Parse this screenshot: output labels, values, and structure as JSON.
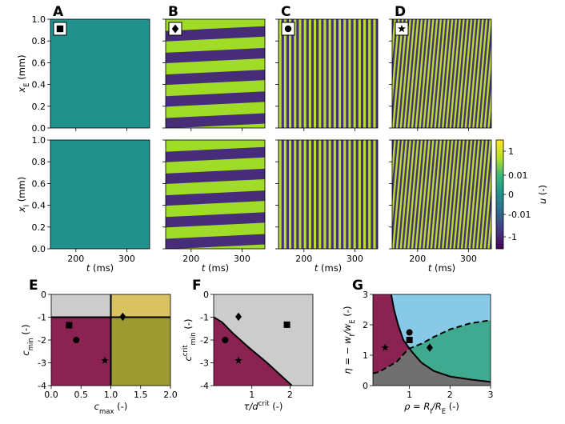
{
  "figure": {
    "panel_letters": [
      "A",
      "B",
      "C",
      "D",
      "E",
      "F",
      "G"
    ],
    "colors": {
      "background": "#ffffff",
      "axes": "#000000"
    }
  },
  "heatmaps": {
    "top_row": {
      "ylabel": "x_E (mm)",
      "ylabel_main": "x",
      "ylabel_sub": "E",
      "ylabel_unit": " (mm)",
      "yticks": [
        "0.0",
        "0.2",
        "0.4",
        "0.6",
        "0.8",
        "1.0"
      ]
    },
    "bottom_row": {
      "ylabel": "x_I (mm)",
      "ylabel_main": "x",
      "ylabel_sub": "I",
      "ylabel_unit": " (mm)",
      "yticks": [
        "0.0",
        "0.2",
        "0.4",
        "0.6",
        "0.8",
        "1.0"
      ]
    },
    "xlabel": "t (ms)",
    "xlabel_main": "t",
    "xlabel_unit": " (ms)",
    "xticks": [
      "200",
      "300"
    ],
    "x_range": [
      150,
      345
    ],
    "y_range": [
      0,
      1
    ],
    "colorbar": {
      "label": "u (-)",
      "label_main": "u",
      "label_unit": " (-)",
      "ticks": [
        "1",
        "0.01",
        "0",
        "-0.01",
        "-1"
      ],
      "colors": [
        "#fde725",
        "#b5de2b",
        "#35b779",
        "#21918c",
        "#31688e",
        "#443983",
        "#440154"
      ]
    },
    "columns": [
      {
        "letter": "A",
        "marker": "square",
        "pattern": "uniform",
        "color": "#21918c"
      },
      {
        "letter": "B",
        "marker": "diamond",
        "pattern": "horizontal-bands",
        "color_high": "#9fdb27",
        "color_low": "#472c7a",
        "bands": 5
      },
      {
        "letter": "C",
        "marker": "circle",
        "pattern": "vertical-stripes",
        "color_high": "#b8de29",
        "color_low": "#46307c",
        "stripes": 20
      },
      {
        "letter": "D",
        "marker": "star",
        "pattern": "diagonal-stripes",
        "color_high": "#b8de29",
        "color_low": "#46307c",
        "stripes": 26
      }
    ]
  },
  "chart_data": [
    {
      "panel": "E",
      "type": "phase-diagram",
      "xlabel": "c_max (-)",
      "xlabel_main": "c",
      "xlabel_sub": "max",
      "xlabel_unit": " (-)",
      "ylabel": "c_min (-)",
      "ylabel_main": "c",
      "ylabel_sub": "min",
      "ylabel_unit": " (-)",
      "xlim": [
        0,
        2
      ],
      "ylim": [
        -4,
        0
      ],
      "xticks": [
        "0.0",
        "0.5",
        "1.0",
        "1.5",
        "2.0"
      ],
      "yticks": [
        "-4",
        "-3",
        "-2",
        "-1",
        "0"
      ],
      "regions": [
        {
          "name": "grey",
          "color": "#cccccc",
          "polygon": [
            [
              0,
              -1
            ],
            [
              1,
              -1
            ],
            [
              1,
              0
            ],
            [
              0,
              0
            ]
          ]
        },
        {
          "name": "yellow",
          "color": "#d9c260",
          "polygon": [
            [
              1,
              -1
            ],
            [
              2,
              -1
            ],
            [
              2,
              0
            ],
            [
              1,
              0
            ]
          ]
        },
        {
          "name": "maroon",
          "color": "#8a2252",
          "polygon": [
            [
              0,
              -4
            ],
            [
              1,
              -4
            ],
            [
              1,
              -1
            ],
            [
              0,
              -1
            ]
          ]
        },
        {
          "name": "olive",
          "color": "#9c9a30",
          "polygon": [
            [
              1,
              -4
            ],
            [
              2,
              -4
            ],
            [
              2,
              -1
            ],
            [
              1,
              -1
            ]
          ]
        }
      ],
      "lines": [
        {
          "points": [
            [
              0,
              -1
            ],
            [
              2,
              -1
            ]
          ],
          "dashed": false
        },
        {
          "points": [
            [
              1,
              -4
            ],
            [
              1,
              0
            ]
          ],
          "dashed": false
        }
      ],
      "points": [
        {
          "marker": "square",
          "x": 0.3,
          "y": -1.35
        },
        {
          "marker": "circle",
          "x": 0.42,
          "y": -2.0
        },
        {
          "marker": "star",
          "x": 0.9,
          "y": -2.9
        },
        {
          "marker": "diamond",
          "x": 1.2,
          "y": -0.98
        }
      ]
    },
    {
      "panel": "F",
      "type": "phase-diagram",
      "xlabel": "τ/d^crit (-)",
      "xlabel_main": "τ/d",
      "xlabel_sup": "crit",
      "xlabel_unit": " (-)",
      "ylabel": "c_min^crit (-)",
      "ylabel_main": "c",
      "ylabel_sub": "min",
      "ylabel_sup": "crit",
      "ylabel_unit": " (-)",
      "xlim": [
        0,
        2.6
      ],
      "ylim": [
        -4,
        0
      ],
      "xticks": [
        "1",
        "2"
      ],
      "yticks": [
        "-4",
        "-3",
        "-2",
        "-1",
        "0"
      ],
      "regions": [
        {
          "name": "grey",
          "color": "#cccccc",
          "polygon": [
            [
              0,
              -4
            ],
            [
              0,
              0
            ],
            [
              2.6,
              0
            ],
            [
              2.6,
              -4
            ]
          ]
        },
        {
          "name": "maroon",
          "color": "#8a2252",
          "polygon": [
            [
              0,
              -4
            ],
            [
              0,
              -1
            ],
            [
              0.22,
              -1.22
            ],
            [
              0.5,
              -1.7
            ],
            [
              0.9,
              -2.3
            ],
            [
              1.4,
              -3.0
            ],
            [
              2.05,
              -4.0
            ]
          ]
        }
      ],
      "lines": [
        {
          "points": [
            [
              0,
              -1
            ],
            [
              0.22,
              -1.22
            ],
            [
              0.5,
              -1.7
            ],
            [
              0.9,
              -2.3
            ],
            [
              1.4,
              -3.0
            ],
            [
              2.05,
              -4.0
            ]
          ],
          "dashed": false
        }
      ],
      "points": [
        {
          "marker": "diamond",
          "x": 0.65,
          "y": -0.98
        },
        {
          "marker": "square",
          "x": 1.92,
          "y": -1.33
        },
        {
          "marker": "circle",
          "x": 0.3,
          "y": -2.0
        },
        {
          "marker": "star",
          "x": 0.65,
          "y": -2.9
        }
      ]
    },
    {
      "panel": "G",
      "type": "phase-diagram",
      "xlabel": "ρ = R_I/R_E (-)",
      "xlabel_main": "ρ = R",
      "xlabel_sub": "I",
      "xlabel_mid": "/R",
      "xlabel_sub2": "E",
      "xlabel_unit": " (-)",
      "ylabel": "η = − w_I/w_E (-)",
      "ylabel_main": "η = − w",
      "ylabel_sub": "I",
      "ylabel_mid": "/w",
      "ylabel_sub2": "E",
      "ylabel_unit": " (-)",
      "xlim": [
        0.1,
        3
      ],
      "ylim": [
        0,
        3
      ],
      "xticks": [
        "1",
        "2",
        "3"
      ],
      "yticks": [
        "0",
        "1",
        "2",
        "3"
      ],
      "regions": [
        {
          "name": "grey",
          "color": "#707070",
          "polygon": [
            [
              0.1,
              0
            ],
            [
              3,
              0
            ],
            [
              3,
              0.12
            ],
            [
              2.5,
              0.2
            ],
            [
              2.0,
              0.3
            ],
            [
              1.6,
              0.48
            ],
            [
              1.3,
              0.75
            ],
            [
              1.1,
              1.05
            ],
            [
              1.0,
              1.22
            ],
            [
              0.9,
              1.1
            ],
            [
              0.7,
              0.8
            ],
            [
              0.45,
              0.6
            ],
            [
              0.25,
              0.45
            ],
            [
              0.1,
              0.4
            ]
          ]
        },
        {
          "name": "maroon",
          "color": "#8a2252",
          "polygon": [
            [
              0.1,
              3
            ],
            [
              0.55,
              3
            ],
            [
              0.62,
              2.5
            ],
            [
              0.72,
              2.0
            ],
            [
              0.85,
              1.5
            ],
            [
              1.0,
              1.22
            ],
            [
              0.9,
              1.1
            ],
            [
              0.7,
              0.8
            ],
            [
              0.45,
              0.6
            ],
            [
              0.25,
              0.45
            ],
            [
              0.1,
              0.4
            ]
          ]
        },
        {
          "name": "blue",
          "color": "#88c9e8",
          "polygon": [
            [
              0.55,
              3
            ],
            [
              3,
              3
            ],
            [
              3,
              2.15
            ],
            [
              2.5,
              2.05
            ],
            [
              2.0,
              1.85
            ],
            [
              1.6,
              1.6
            ],
            [
              1.3,
              1.38
            ],
            [
              1.0,
              1.22
            ],
            [
              0.85,
              1.5
            ],
            [
              0.72,
              2.0
            ],
            [
              0.62,
              2.5
            ]
          ]
        },
        {
          "name": "teal",
          "color": "#3faa90",
          "polygon": [
            [
              1.0,
              1.22
            ],
            [
              1.3,
              1.38
            ],
            [
              1.6,
              1.6
            ],
            [
              2.0,
              1.85
            ],
            [
              2.5,
              2.05
            ],
            [
              3,
              2.15
            ],
            [
              3,
              0.12
            ],
            [
              2.5,
              0.2
            ],
            [
              2.0,
              0.3
            ],
            [
              1.6,
              0.48
            ],
            [
              1.3,
              0.75
            ],
            [
              1.1,
              1.05
            ]
          ]
        }
      ],
      "lines": [
        {
          "points": [
            [
              0.55,
              3
            ],
            [
              0.62,
              2.5
            ],
            [
              0.72,
              2.0
            ],
            [
              0.85,
              1.5
            ],
            [
              1.0,
              1.22
            ],
            [
              1.1,
              1.05
            ],
            [
              1.3,
              0.75
            ],
            [
              1.6,
              0.48
            ],
            [
              2.0,
              0.3
            ],
            [
              2.5,
              0.2
            ],
            [
              3,
              0.12
            ]
          ],
          "dashed": false
        },
        {
          "points": [
            [
              0.1,
              0.4
            ],
            [
              0.25,
              0.45
            ],
            [
              0.45,
              0.6
            ],
            [
              0.7,
              0.8
            ],
            [
              0.9,
              1.1
            ],
            [
              1.0,
              1.22
            ],
            [
              1.3,
              1.38
            ],
            [
              1.6,
              1.6
            ],
            [
              2.0,
              1.85
            ],
            [
              2.5,
              2.05
            ],
            [
              3,
              2.15
            ]
          ],
          "dashed": true
        }
      ],
      "points": [
        {
          "marker": "circle",
          "x": 1.0,
          "y": 1.75
        },
        {
          "marker": "square",
          "x": 1.0,
          "y": 1.5
        },
        {
          "marker": "star",
          "x": 0.4,
          "y": 1.25
        },
        {
          "marker": "diamond",
          "x": 1.5,
          "y": 1.25
        }
      ]
    }
  ]
}
